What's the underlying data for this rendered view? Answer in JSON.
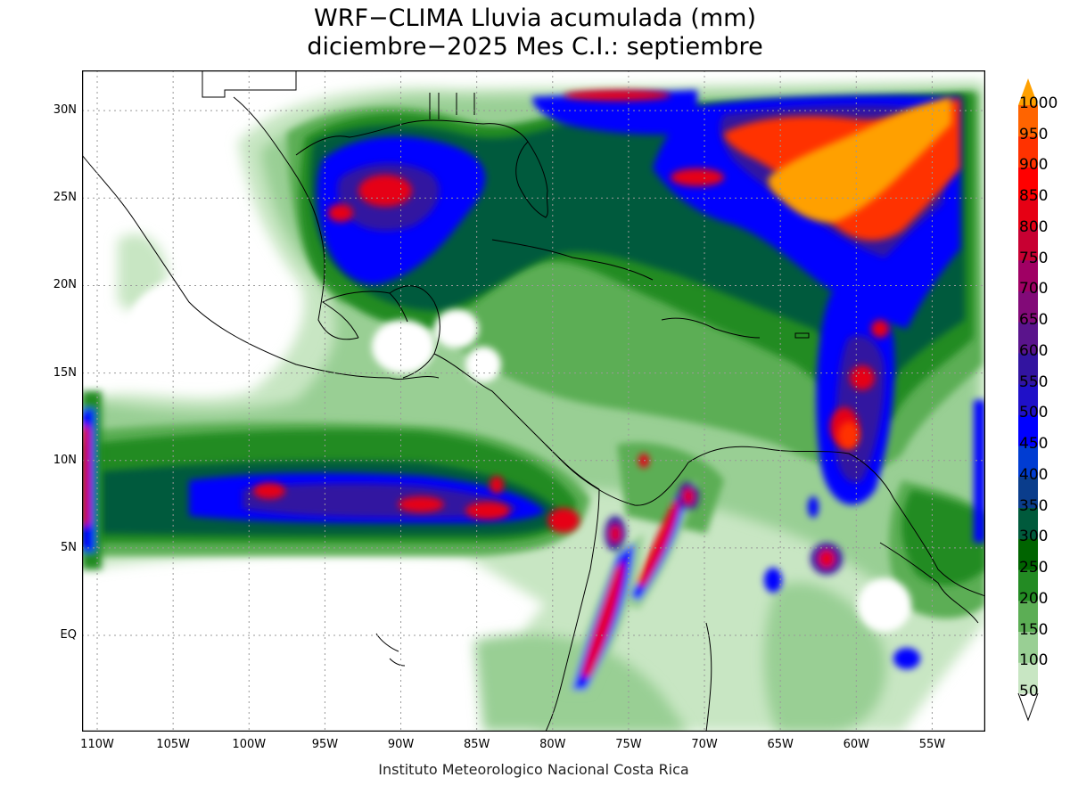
{
  "title": {
    "line1": "WRF−CLIMA Lluvia acumulada (mm)",
    "line2": "diciembre−2025 Mes C.I.: septiembre"
  },
  "credit": "Instituto Meteorologico Nacional Costa Rica",
  "map": {
    "lon_range": [
      -111,
      -51.5
    ],
    "lat_range": [
      -5.5,
      32.3
    ],
    "x_ticks": [
      {
        "lon": -110,
        "label": "110W"
      },
      {
        "lon": -105,
        "label": "105W"
      },
      {
        "lon": -100,
        "label": "100W"
      },
      {
        "lon": -95,
        "label": "95W"
      },
      {
        "lon": -90,
        "label": "90W"
      },
      {
        "lon": -85,
        "label": "85W"
      },
      {
        "lon": -80,
        "label": "80W"
      },
      {
        "lon": -75,
        "label": "75W"
      },
      {
        "lon": -70,
        "label": "70W"
      },
      {
        "lon": -65,
        "label": "65W"
      },
      {
        "lon": -60,
        "label": "60W"
      },
      {
        "lon": -55,
        "label": "55W"
      }
    ],
    "y_ticks": [
      {
        "lat": 30,
        "label": "30N"
      },
      {
        "lat": 25,
        "label": "25N"
      },
      {
        "lat": 20,
        "label": "20N"
      },
      {
        "lat": 15,
        "label": "15N"
      },
      {
        "lat": 10,
        "label": "10N"
      },
      {
        "lat": 5,
        "label": "5N"
      },
      {
        "lat": 0,
        "label": "EQ"
      }
    ],
    "gridlines": "dotted"
  },
  "legend": {
    "levels": [
      {
        "value": 50,
        "label": "50",
        "color": "#c8e6c3"
      },
      {
        "value": 100,
        "label": "100",
        "color": "#99cf94"
      },
      {
        "value": 150,
        "label": "150",
        "color": "#5cae55"
      },
      {
        "value": 200,
        "label": "200",
        "color": "#238b23"
      },
      {
        "value": 250,
        "label": "250",
        "color": "#006400"
      },
      {
        "value": 300,
        "label": "300",
        "color": "#005a3c"
      },
      {
        "value": 350,
        "label": "350",
        "color": "#0a3d8c"
      },
      {
        "value": 400,
        "label": "400",
        "color": "#003cd2"
      },
      {
        "value": 450,
        "label": "450",
        "color": "#0000ff"
      },
      {
        "value": 500,
        "label": "500",
        "color": "#1f10c8"
      },
      {
        "value": 550,
        "label": "550",
        "color": "#3214a0"
      },
      {
        "value": 600,
        "label": "600",
        "color": "#5a148c"
      },
      {
        "value": 650,
        "label": "650",
        "color": "#820a78"
      },
      {
        "value": 700,
        "label": "700",
        "color": "#a00064"
      },
      {
        "value": 750,
        "label": "750",
        "color": "#c80032"
      },
      {
        "value": 800,
        "label": "800",
        "color": "#e60014"
      },
      {
        "value": 850,
        "label": "850",
        "color": "#ff0000"
      },
      {
        "value": 900,
        "label": "900",
        "color": "#ff3200"
      },
      {
        "value": 950,
        "label": "950",
        "color": "#ff6400"
      },
      {
        "value": 1000,
        "label": "1000",
        "color": "#ffa000"
      }
    ]
  }
}
